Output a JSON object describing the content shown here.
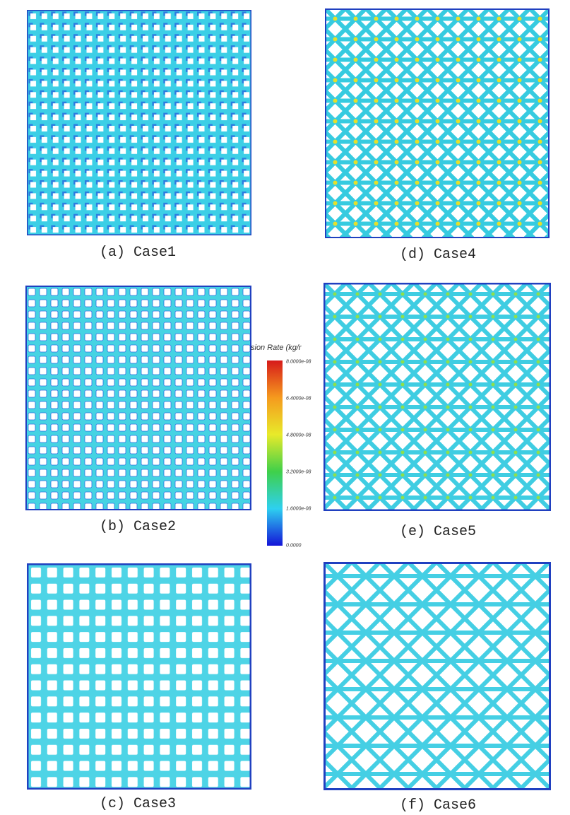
{
  "panels": [
    {
      "caption": "(a) Case1"
    },
    {
      "caption": "(b) Case2"
    },
    {
      "caption": "(c) Case3"
    },
    {
      "caption": "(d) Case4"
    },
    {
      "caption": "(e) Case5"
    },
    {
      "caption": "(f) Case6"
    }
  ],
  "colorbar": {
    "title": "sion Rate (kg/r",
    "labels": [
      "8.0000e-08",
      "6.4000e-08",
      "4.8000e-08",
      "3.2000e-08",
      "1.6000e-08",
      "0.0000"
    ]
  }
}
